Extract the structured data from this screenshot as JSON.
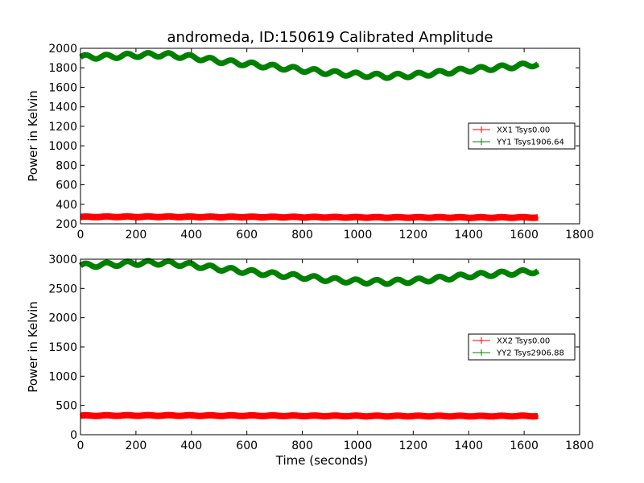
{
  "figure": {
    "title": "andromeda, ID:150619 Calibrated Amplitude"
  },
  "chart_data": [
    {
      "type": "line",
      "title": "andromeda, ID:150619 Calibrated Amplitude",
      "xlabel": "",
      "ylabel": "Power in Kelvin",
      "xlim": [
        0,
        1800
      ],
      "ylim": [
        200,
        2000
      ],
      "xticks": [
        0,
        200,
        400,
        600,
        800,
        1000,
        1200,
        1400,
        1600,
        1800
      ],
      "yticks": [
        200,
        400,
        600,
        800,
        1000,
        1200,
        1400,
        1600,
        1800,
        2000
      ],
      "grid": false,
      "legend_position": "right",
      "series": [
        {
          "name": "XX1 Tsys0.00",
          "color": "#ff0000",
          "x": [
            0,
            100,
            200,
            300,
            400,
            500,
            600,
            700,
            800,
            900,
            1000,
            1100,
            1200,
            1300,
            1400,
            1500,
            1600,
            1650
          ],
          "y": [
            270,
            272,
            272,
            272,
            271,
            270,
            270,
            269,
            268,
            267,
            266,
            265,
            265,
            265,
            264,
            264,
            265,
            265
          ]
        },
        {
          "name": "YY1 Tsys1906.64",
          "color": "#008000",
          "x": [
            0,
            100,
            200,
            300,
            400,
            500,
            600,
            700,
            800,
            900,
            1000,
            1100,
            1200,
            1300,
            1400,
            1500,
            1600,
            1650
          ],
          "y": [
            1910,
            1915,
            1930,
            1935,
            1910,
            1870,
            1840,
            1810,
            1780,
            1750,
            1730,
            1715,
            1725,
            1750,
            1780,
            1800,
            1825,
            1840
          ]
        }
      ]
    },
    {
      "type": "line",
      "title": "",
      "xlabel": "Time (seconds)",
      "ylabel": "Power in Kelvin",
      "xlim": [
        0,
        1800
      ],
      "ylim": [
        0,
        3000
      ],
      "xticks": [
        0,
        200,
        400,
        600,
        800,
        1000,
        1200,
        1400,
        1600,
        1800
      ],
      "yticks": [
        0,
        500,
        1000,
        1500,
        2000,
        2500,
        3000
      ],
      "grid": false,
      "legend_position": "right",
      "series": [
        {
          "name": "XX2 Tsys0.00",
          "color": "#ff0000",
          "x": [
            0,
            100,
            200,
            300,
            400,
            500,
            600,
            700,
            800,
            900,
            1000,
            1100,
            1200,
            1300,
            1400,
            1500,
            1600,
            1650
          ],
          "y": [
            325,
            327,
            328,
            328,
            327,
            326,
            325,
            324,
            322,
            321,
            320,
            319,
            319,
            319,
            318,
            318,
            320,
            320
          ]
        },
        {
          "name": "YY2 Tsys2906.88",
          "color": "#008000",
          "x": [
            0,
            100,
            200,
            300,
            400,
            500,
            600,
            700,
            800,
            900,
            1000,
            1100,
            1200,
            1300,
            1400,
            1500,
            1600,
            1650
          ],
          "y": [
            2890,
            2910,
            2935,
            2940,
            2900,
            2840,
            2790,
            2740,
            2700,
            2650,
            2620,
            2610,
            2630,
            2670,
            2720,
            2750,
            2780,
            2800
          ]
        }
      ]
    }
  ]
}
